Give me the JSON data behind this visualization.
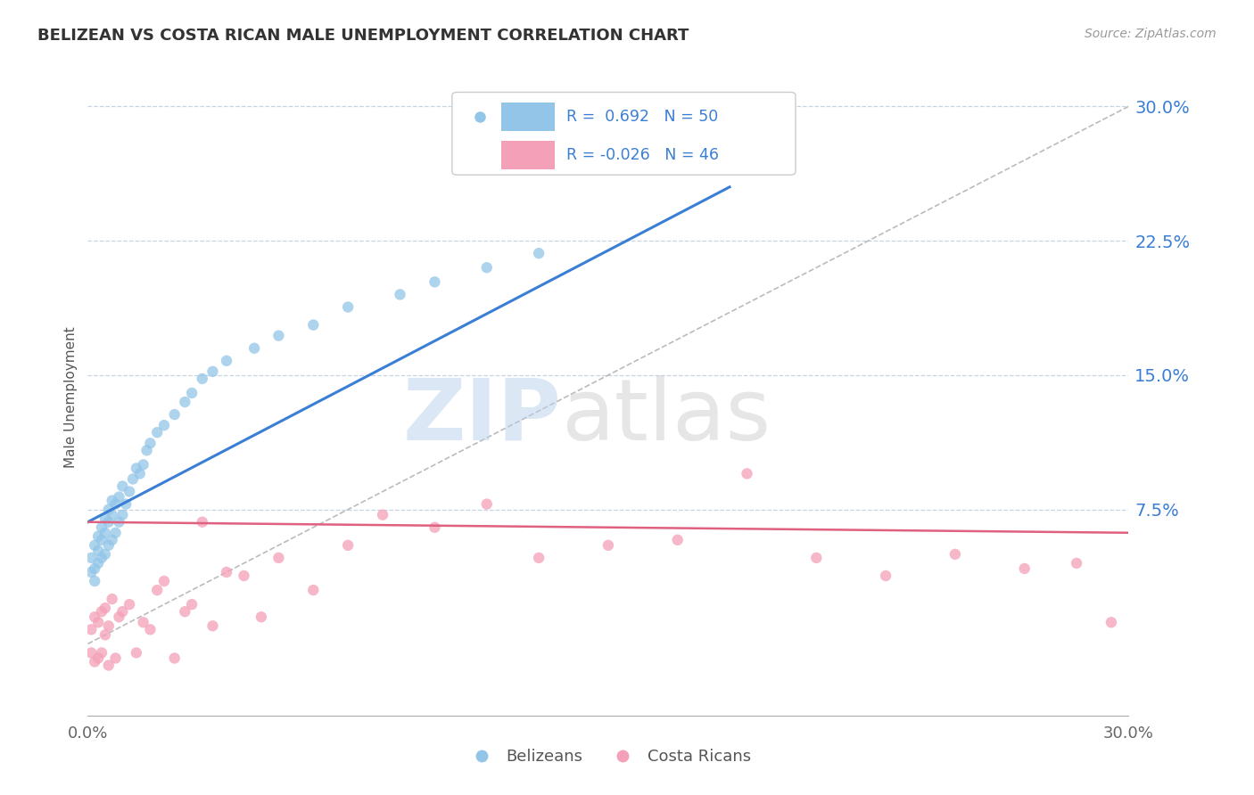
{
  "title": "BELIZEAN VS COSTA RICAN MALE UNEMPLOYMENT CORRELATION CHART",
  "source_text": "Source: ZipAtlas.com",
  "ylabel": "Male Unemployment",
  "right_ytick_labels": [
    "7.5%",
    "15.0%",
    "22.5%",
    "30.0%"
  ],
  "right_ytick_values": [
    0.075,
    0.15,
    0.225,
    0.3
  ],
  "xlim": [
    0.0,
    0.3
  ],
  "ylim": [
    -0.04,
    0.315
  ],
  "belizean_color": "#92c5e8",
  "costa_rican_color": "#f4a0b8",
  "blue_line_color": "#3a7fd5",
  "pink_line_color": "#e06080",
  "diag_line_color": "#bbbbbb",
  "grid_color": "#c8d4e0",
  "background_color": "#ffffff",
  "watermark_zip_color": "#b8d0ea",
  "watermark_atlas_color": "#c8c8c8",
  "legend_R1": "0.692",
  "legend_N1": "50",
  "legend_R2": "-0.026",
  "legend_N2": "46",
  "legend_label1": "Belizeans",
  "legend_label2": "Costa Ricans",
  "blue_trend_x0": 0.0,
  "blue_trend_y0": 0.068,
  "blue_trend_x1": 0.185,
  "blue_trend_y1": 0.255,
  "pink_trend_x0": 0.0,
  "pink_trend_y0": 0.068,
  "pink_trend_x1": 0.3,
  "pink_trend_y1": 0.062,
  "belizean_x": [
    0.001,
    0.001,
    0.002,
    0.002,
    0.002,
    0.003,
    0.003,
    0.003,
    0.004,
    0.004,
    0.004,
    0.005,
    0.005,
    0.005,
    0.006,
    0.006,
    0.006,
    0.007,
    0.007,
    0.007,
    0.008,
    0.008,
    0.009,
    0.009,
    0.01,
    0.01,
    0.011,
    0.012,
    0.013,
    0.014,
    0.015,
    0.016,
    0.017,
    0.018,
    0.02,
    0.022,
    0.025,
    0.028,
    0.03,
    0.033,
    0.036,
    0.04,
    0.048,
    0.055,
    0.065,
    0.075,
    0.09,
    0.1,
    0.115,
    0.13
  ],
  "belizean_y": [
    0.04,
    0.048,
    0.035,
    0.042,
    0.055,
    0.045,
    0.052,
    0.06,
    0.048,
    0.058,
    0.065,
    0.05,
    0.062,
    0.07,
    0.055,
    0.068,
    0.075,
    0.058,
    0.072,
    0.08,
    0.062,
    0.078,
    0.068,
    0.082,
    0.072,
    0.088,
    0.078,
    0.085,
    0.092,
    0.098,
    0.095,
    0.1,
    0.108,
    0.112,
    0.118,
    0.122,
    0.128,
    0.135,
    0.14,
    0.148,
    0.152,
    0.158,
    0.165,
    0.172,
    0.178,
    0.188,
    0.195,
    0.202,
    0.21,
    0.218
  ],
  "costa_rican_x": [
    0.001,
    0.001,
    0.002,
    0.002,
    0.003,
    0.003,
    0.004,
    0.004,
    0.005,
    0.005,
    0.006,
    0.006,
    0.007,
    0.008,
    0.009,
    0.01,
    0.012,
    0.014,
    0.016,
    0.018,
    0.02,
    0.022,
    0.025,
    0.028,
    0.03,
    0.033,
    0.036,
    0.04,
    0.045,
    0.05,
    0.055,
    0.065,
    0.075,
    0.085,
    0.1,
    0.115,
    0.13,
    0.15,
    0.17,
    0.19,
    0.21,
    0.23,
    0.25,
    0.27,
    0.285,
    0.295
  ],
  "costa_rican_y": [
    -0.005,
    0.008,
    -0.01,
    0.015,
    -0.008,
    0.012,
    -0.005,
    0.018,
    0.005,
    0.02,
    -0.012,
    0.01,
    0.025,
    -0.008,
    0.015,
    0.018,
    0.022,
    -0.005,
    0.012,
    0.008,
    0.03,
    0.035,
    -0.008,
    0.018,
    0.022,
    0.068,
    0.01,
    0.04,
    0.038,
    0.015,
    0.048,
    0.03,
    0.055,
    0.072,
    0.065,
    0.078,
    0.048,
    0.055,
    0.058,
    0.095,
    0.048,
    0.038,
    0.05,
    0.042,
    0.045,
    0.012
  ]
}
